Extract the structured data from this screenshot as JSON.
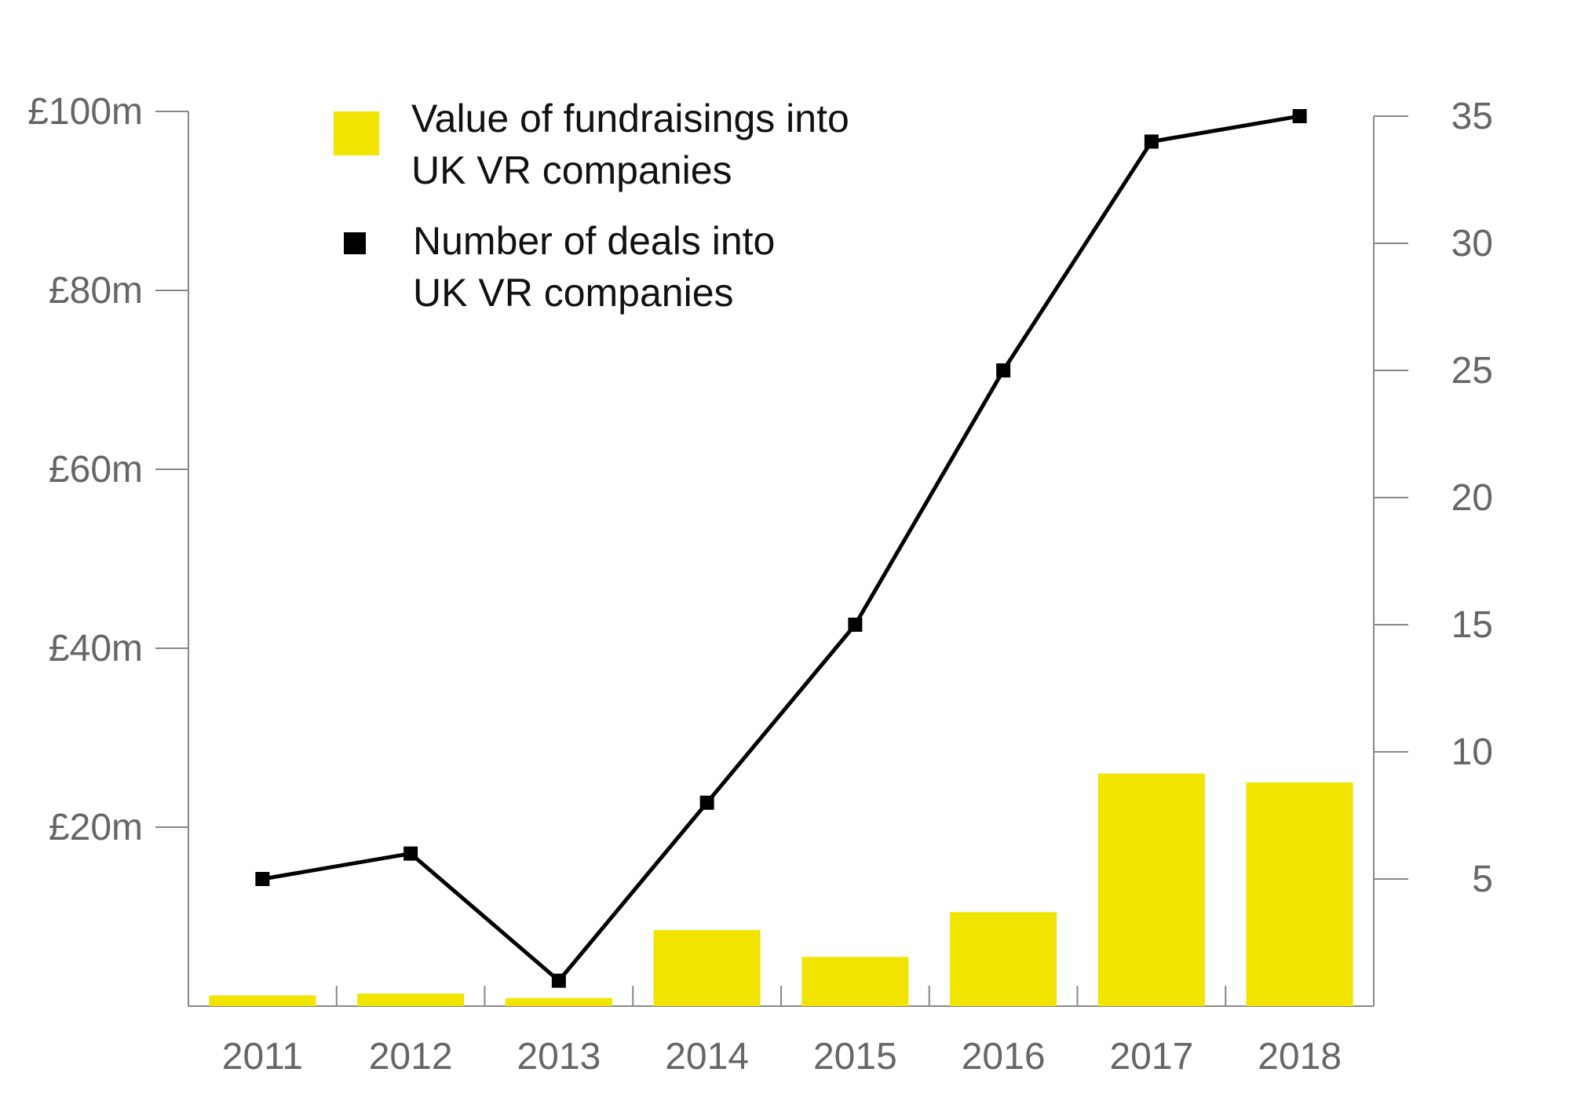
{
  "chart_data": {
    "type": "bar",
    "categories": [
      "2011",
      "2012",
      "2013",
      "2014",
      "2015",
      "2016",
      "2017",
      "2018"
    ],
    "series": [
      {
        "name": "Value of fundraisings into UK VR companies",
        "kind": "bar",
        "axis": "left",
        "color": "#f0e400",
        "values": [
          1.2,
          1.4,
          0.9,
          8.5,
          5.5,
          10.5,
          26,
          25
        ]
      },
      {
        "name": "Number of deals into UK VR companies",
        "kind": "line",
        "axis": "right",
        "color": "#000000",
        "values": [
          5,
          6,
          1,
          8,
          15,
          25,
          34,
          35
        ]
      }
    ],
    "y_left": {
      "ylim": [
        0,
        100
      ],
      "ticks": [
        20,
        40,
        60,
        80,
        100
      ],
      "tick_labels": [
        "£20m",
        "£40m",
        "£60m",
        "£80m",
        "£100m"
      ]
    },
    "y_right": {
      "ylim": [
        0,
        35
      ],
      "ticks": [
        5,
        10,
        15,
        20,
        25,
        30,
        35
      ],
      "tick_labels": [
        "5",
        "10",
        "15",
        "20",
        "25",
        "30",
        "35"
      ]
    },
    "legend": {
      "placement": "top-left",
      "items": [
        {
          "lines": [
            "Value of fundraisings into",
            "UK VR companies"
          ],
          "marker": "bar"
        },
        {
          "lines": [
            "Number of deals into",
            "UK VR companies"
          ],
          "marker": "square"
        }
      ]
    },
    "grid": false
  }
}
